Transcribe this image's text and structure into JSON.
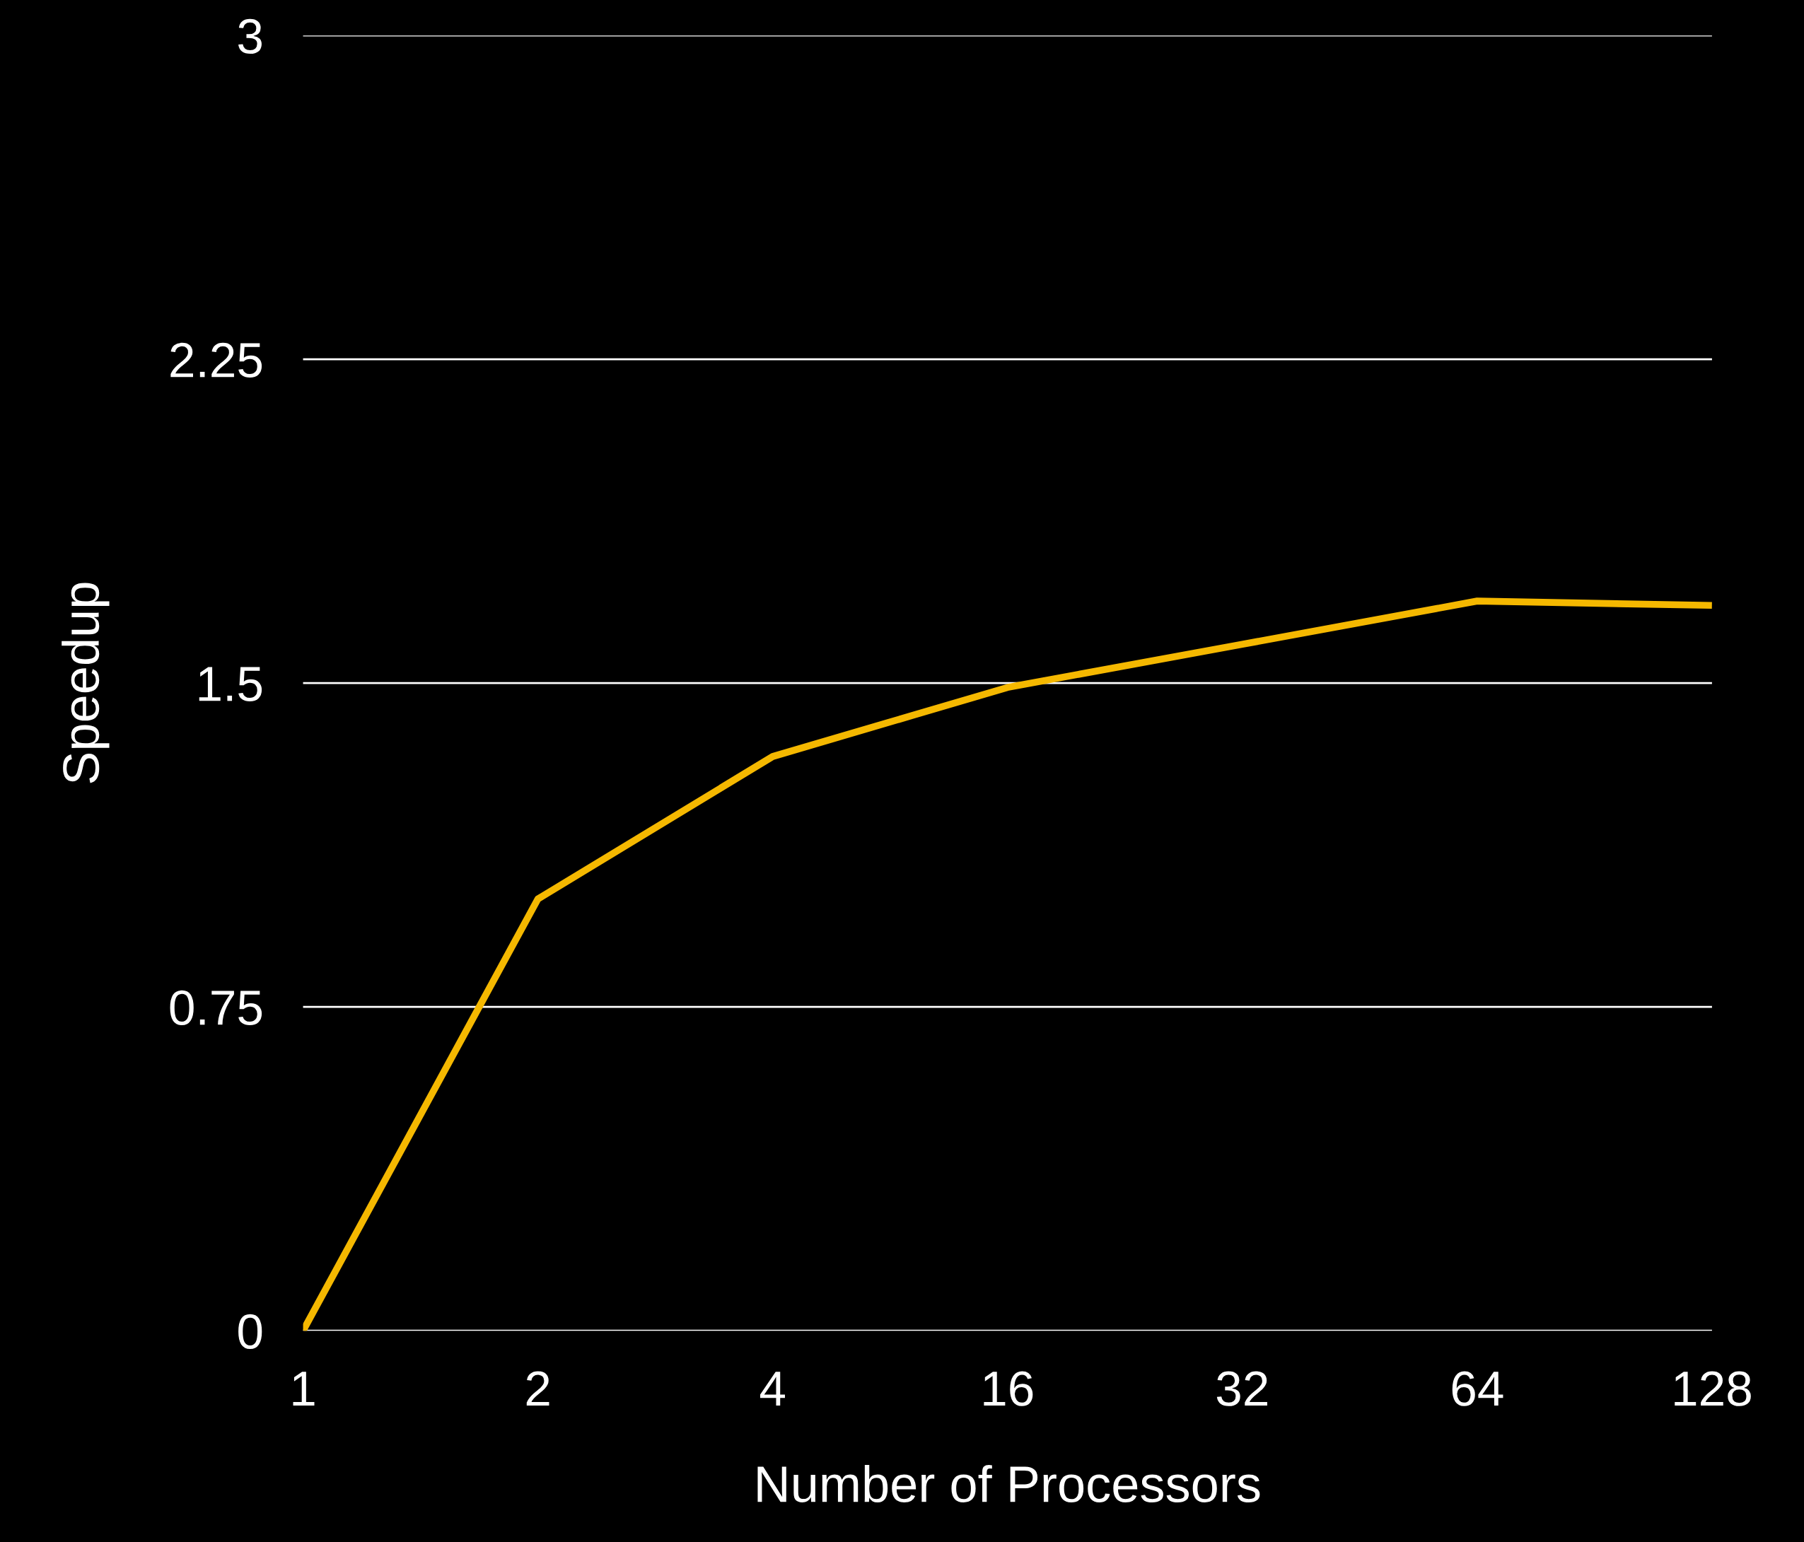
{
  "chart_data": {
    "type": "line",
    "xlabel": "Number of Processors",
    "ylabel": "Speedup",
    "categories": [
      "1",
      "2",
      "4",
      "16",
      "32",
      "64",
      "128"
    ],
    "series": [
      {
        "color": "#f5b800",
        "values": [
          0,
          1.0,
          1.33,
          1.49,
          1.59,
          1.69,
          1.68
        ]
      }
    ],
    "ylim": [
      0,
      3
    ],
    "yticks": [
      0,
      {
        "value": 0.75,
        "label": "0.75"
      },
      1.5,
      {
        "value": 2.25,
        "label": "2.25"
      },
      3
    ],
    "grid": "y",
    "legend": false,
    "marker": "none",
    "line_style": "solid"
  }
}
